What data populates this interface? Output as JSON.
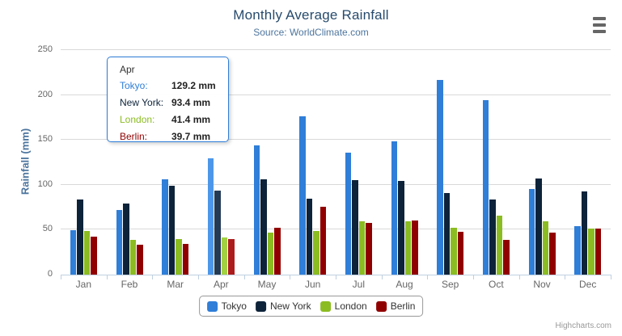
{
  "credit": "Highcharts.com",
  "chart_data": {
    "type": "bar",
    "title": "Monthly Average Rainfall",
    "subtitle": "Source: WorldClimate.com",
    "xlabel": "",
    "ylabel": "Rainfall (mm)",
    "ylim": [
      0,
      250
    ],
    "yticks": [
      0,
      50,
      100,
      150,
      200,
      250
    ],
    "grid": true,
    "legend_position": "bottom",
    "categories": [
      "Jan",
      "Feb",
      "Mar",
      "Apr",
      "May",
      "Jun",
      "Jul",
      "Aug",
      "Sep",
      "Oct",
      "Nov",
      "Dec"
    ],
    "highlighted_category": "Apr",
    "highlighted_index": 3,
    "series": [
      {
        "name": "Tokyo",
        "color": "#2f7ed8",
        "hover_color": "#4d97ea",
        "values": [
          49.9,
          71.5,
          106.4,
          129.2,
          144.0,
          176.0,
          135.6,
          148.5,
          216.4,
          194.1,
          95.6,
          54.4
        ]
      },
      {
        "name": "New York",
        "color": "#0d233a",
        "hover_color": "#243b55",
        "values": [
          83.6,
          78.8,
          98.5,
          93.4,
          106.0,
          84.5,
          105.0,
          104.3,
          91.2,
          83.5,
          106.6,
          92.3
        ]
      },
      {
        "name": "London",
        "color": "#8bbc21",
        "hover_color": "#a2d243",
        "values": [
          48.9,
          38.8,
          39.3,
          41.4,
          47.0,
          48.3,
          59.0,
          59.6,
          52.4,
          65.2,
          59.3,
          51.2
        ]
      },
      {
        "name": "Berlin",
        "color": "#910000",
        "hover_color": "#ac1c1c",
        "values": [
          42.4,
          33.2,
          34.5,
          39.7,
          52.6,
          75.5,
          57.4,
          60.4,
          47.6,
          39.1,
          46.8,
          51.1
        ]
      }
    ],
    "axis_colors": {
      "gridline": "#d9d9d9",
      "axis_line": "#c0d0e0",
      "labels": "#666666"
    }
  },
  "tooltip": {
    "header": "Apr",
    "border_color": "#2f7ed8",
    "rows": [
      {
        "label": "Tokyo:",
        "value": "129.2 mm",
        "color": "#2f7ed8"
      },
      {
        "label": "New York:",
        "value": "93.4 mm",
        "color": "#0d233a"
      },
      {
        "label": "London:",
        "value": "41.4 mm",
        "color": "#8bbc21"
      },
      {
        "label": "Berlin:",
        "value": "39.7 mm",
        "color": "#910000"
      }
    ]
  }
}
